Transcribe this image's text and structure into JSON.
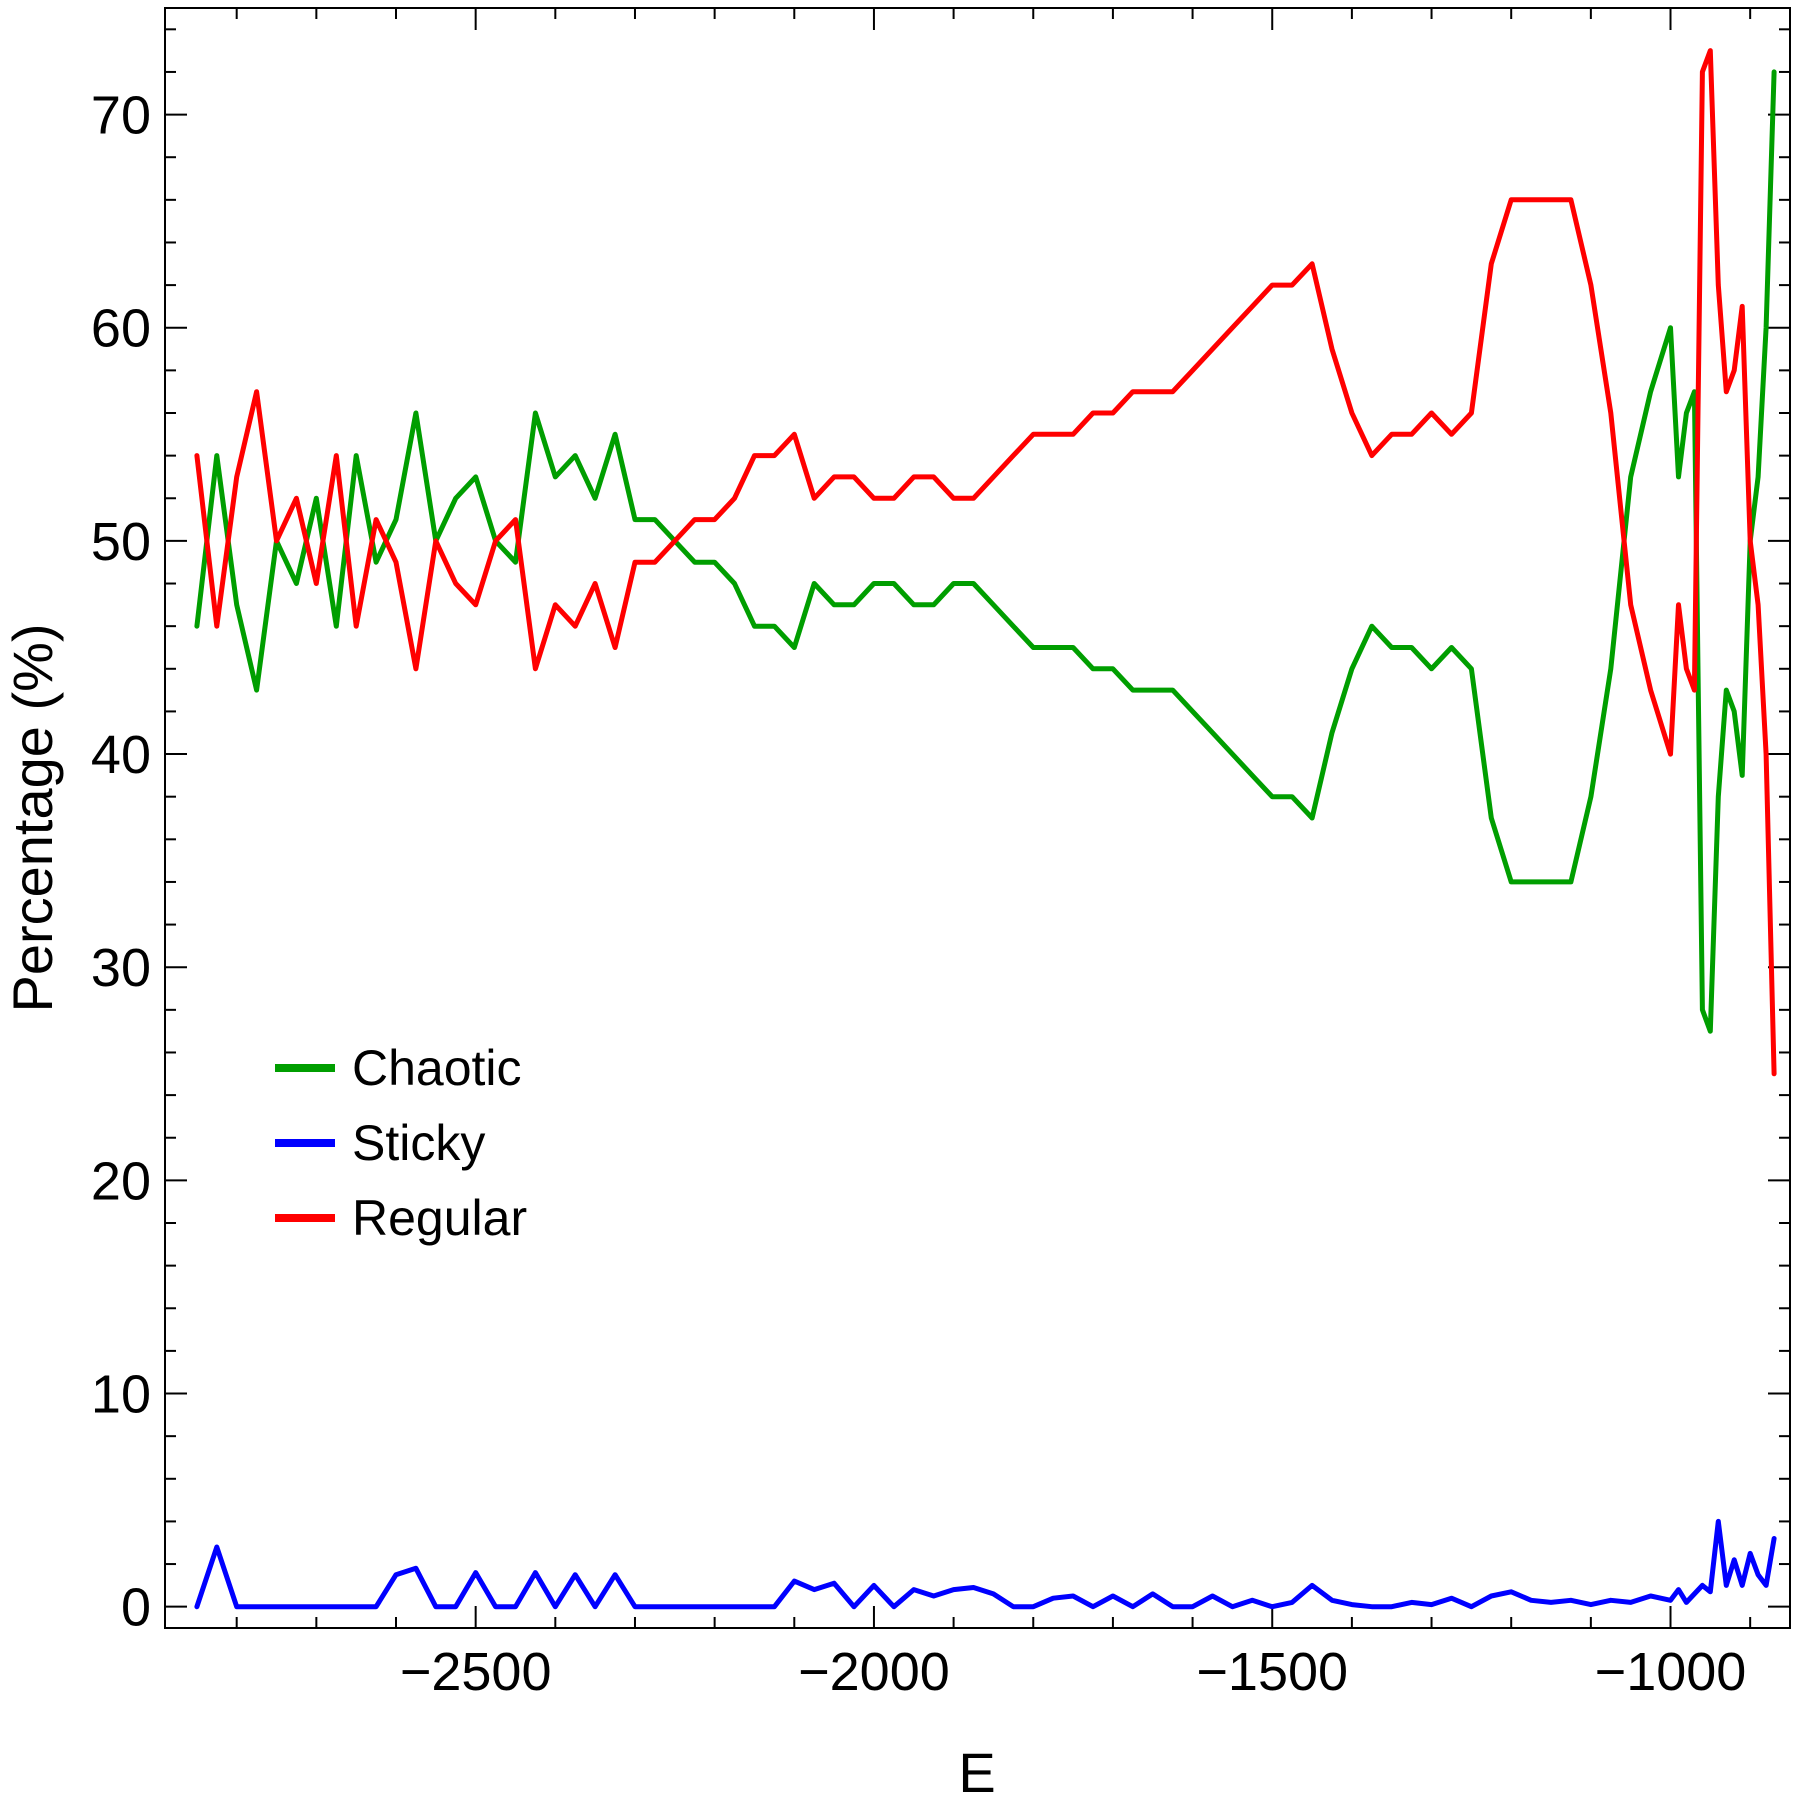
{
  "chart_data": {
    "type": "line",
    "title": "",
    "xlabel": "E",
    "ylabel": "Percentage (%)",
    "xlim": [
      -2890,
      -850
    ],
    "ylim": [
      -1,
      75
    ],
    "grid": false,
    "legend_position": "left-middle",
    "x_ticks": [
      -2500,
      -2000,
      -1500,
      -1000
    ],
    "x_tick_labels": [
      "−2500",
      "−2000",
      "−1500",
      "−1000"
    ],
    "y_ticks": [
      0,
      10,
      20,
      30,
      40,
      50,
      60,
      70
    ],
    "y_tick_labels": [
      "0",
      "10",
      "20",
      "30",
      "40",
      "50",
      "60",
      "70"
    ],
    "x": [
      -2850,
      -2825,
      -2800,
      -2775,
      -2750,
      -2725,
      -2700,
      -2675,
      -2650,
      -2625,
      -2600,
      -2575,
      -2550,
      -2525,
      -2500,
      -2475,
      -2450,
      -2425,
      -2400,
      -2375,
      -2350,
      -2325,
      -2300,
      -2275,
      -2250,
      -2225,
      -2200,
      -2175,
      -2150,
      -2125,
      -2100,
      -2075,
      -2050,
      -2025,
      -2000,
      -1975,
      -1950,
      -1925,
      -1900,
      -1875,
      -1850,
      -1825,
      -1800,
      -1775,
      -1750,
      -1725,
      -1700,
      -1675,
      -1650,
      -1625,
      -1600,
      -1575,
      -1550,
      -1525,
      -1500,
      -1475,
      -1450,
      -1425,
      -1400,
      -1375,
      -1350,
      -1325,
      -1300,
      -1275,
      -1250,
      -1225,
      -1200,
      -1175,
      -1150,
      -1125,
      -1100,
      -1075,
      -1050,
      -1025,
      -1000,
      -990,
      -980,
      -970,
      -960,
      -950,
      -940,
      -930,
      -920,
      -910,
      -900,
      -890,
      -880,
      -870
    ],
    "series": [
      {
        "name": "Chaotic",
        "color": "#009e00",
        "values": [
          46,
          54,
          47,
          43,
          50,
          48,
          52,
          46,
          54,
          49,
          51,
          56,
          50,
          52,
          53,
          50,
          49,
          56,
          53,
          54,
          52,
          55,
          51,
          51,
          50,
          49,
          49,
          48,
          46,
          46,
          45,
          48,
          47,
          47,
          48,
          48,
          47,
          47,
          48,
          48,
          47,
          46,
          45,
          45,
          45,
          44,
          44,
          43,
          43,
          43,
          42,
          41,
          40,
          39,
          38,
          38,
          37,
          41,
          44,
          46,
          45,
          45,
          44,
          45,
          44,
          37,
          34,
          34,
          34,
          34,
          38,
          44,
          53,
          57,
          60,
          53,
          56,
          57,
          28,
          27,
          38,
          43,
          42,
          39,
          50,
          53,
          60,
          72
        ]
      },
      {
        "name": "Sticky",
        "color": "#0000ff",
        "values": [
          0,
          2.8,
          0,
          0,
          0,
          0,
          0,
          0,
          0,
          0,
          1.5,
          1.8,
          0,
          0,
          1.6,
          0,
          0,
          1.6,
          0,
          1.5,
          0,
          1.5,
          0,
          0,
          0,
          0,
          0,
          0,
          0,
          0,
          1.2,
          0.8,
          1.1,
          0,
          1.0,
          0,
          0.8,
          0.5,
          0.8,
          0.9,
          0.6,
          0,
          0,
          0.4,
          0.5,
          0,
          0.5,
          0,
          0.6,
          0,
          0,
          0.5,
          0,
          0.3,
          0,
          0.2,
          1.0,
          0.3,
          0.1,
          0,
          0,
          0.2,
          0.1,
          0.4,
          0,
          0.5,
          0.7,
          0.3,
          0.2,
          0.3,
          0.1,
          0.3,
          0.2,
          0.5,
          0.3,
          0.8,
          0.2,
          0.6,
          1.0,
          0.7,
          4.0,
          1.0,
          2.2,
          1.0,
          2.5,
          1.5,
          1.0,
          3.2
        ]
      },
      {
        "name": "Regular",
        "color": "#ff0000",
        "values": [
          54,
          46,
          53,
          57,
          50,
          52,
          48,
          54,
          46,
          51,
          49,
          44,
          50,
          48,
          47,
          50,
          51,
          44,
          47,
          46,
          48,
          45,
          49,
          49,
          50,
          51,
          51,
          52,
          54,
          54,
          55,
          52,
          53,
          53,
          52,
          52,
          53,
          53,
          52,
          52,
          53,
          54,
          55,
          55,
          55,
          56,
          56,
          57,
          57,
          57,
          58,
          59,
          60,
          61,
          62,
          62,
          63,
          59,
          56,
          54,
          55,
          55,
          56,
          55,
          56,
          63,
          66,
          66,
          66,
          66,
          62,
          56,
          47,
          43,
          40,
          47,
          44,
          43,
          72,
          73,
          62,
          57,
          58,
          61,
          50,
          47,
          40,
          25
        ]
      }
    ]
  }
}
